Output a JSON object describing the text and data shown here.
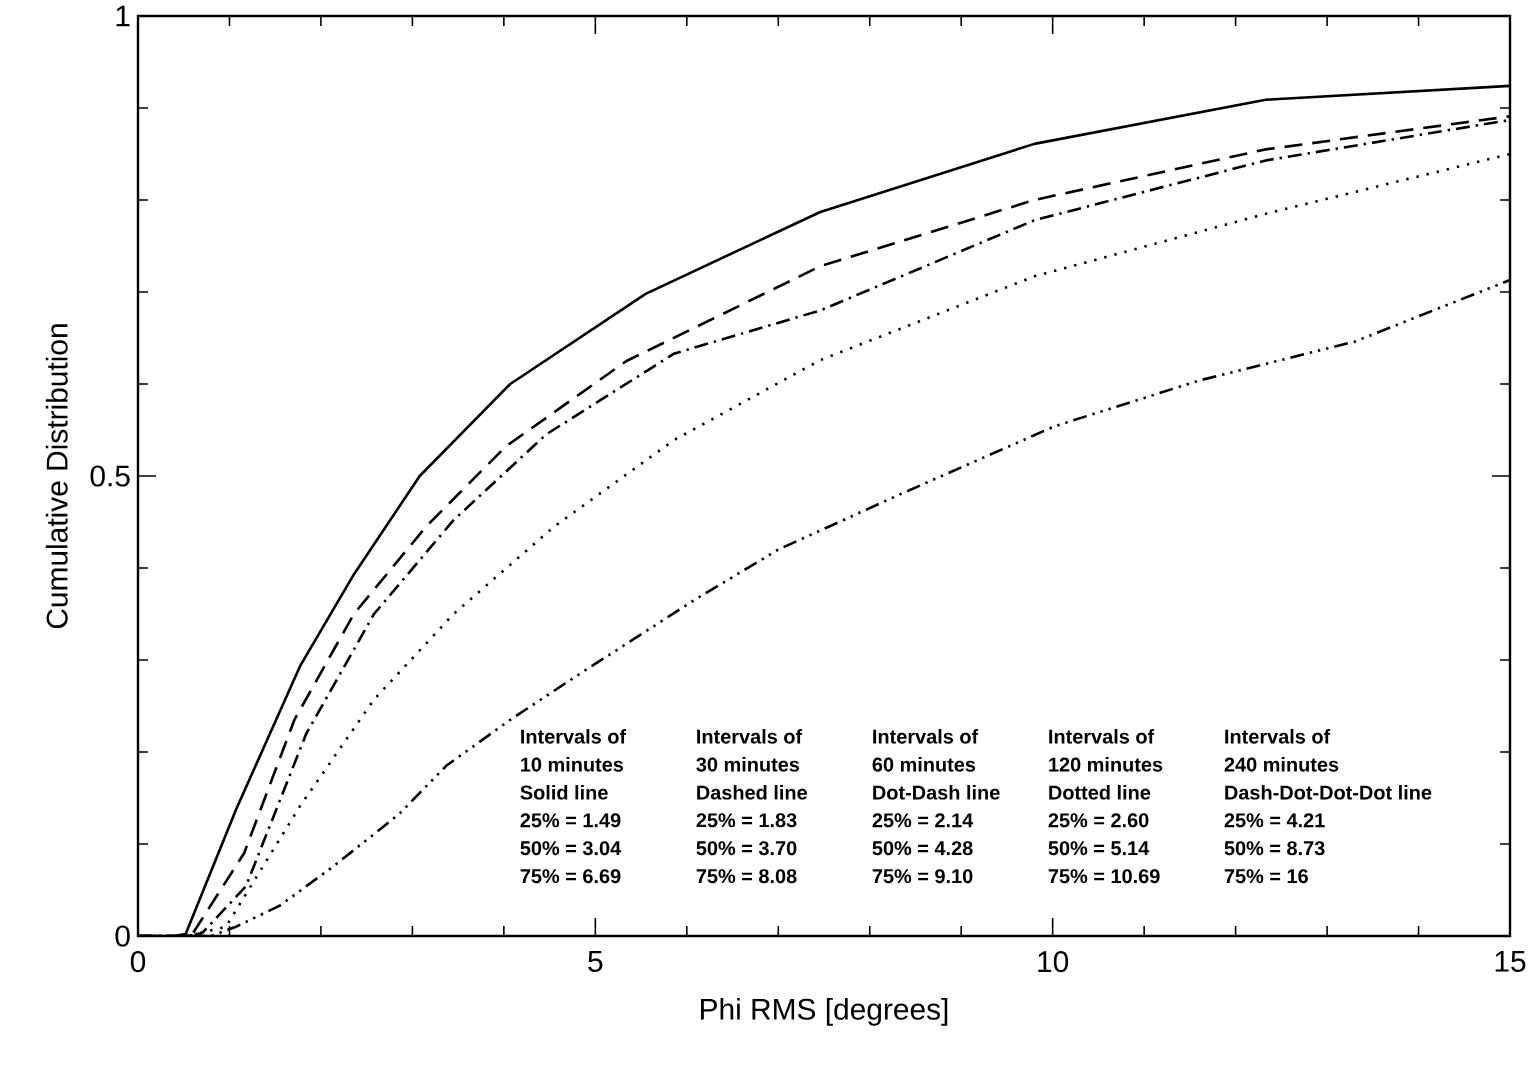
{
  "chart_data": {
    "type": "line",
    "xlabel": "Phi RMS [degrees]",
    "ylabel": "Cumulative Distribution",
    "xlim": [
      0,
      15
    ],
    "ylim": [
      0,
      1
    ],
    "xticks": [
      0,
      {
        "value": 1,
        "label": null
      },
      {
        "value": 2,
        "label": null
      },
      {
        "value": 3,
        "label": null
      },
      {
        "value": 4,
        "label": null
      },
      5,
      {
        "value": 6,
        "label": null
      },
      {
        "value": 7,
        "label": null
      },
      {
        "value": 8,
        "label": null
      },
      {
        "value": 9,
        "label": null
      },
      10,
      {
        "value": 11,
        "label": null
      },
      {
        "value": 12,
        "label": null
      },
      {
        "value": 13,
        "label": null
      },
      {
        "value": 14,
        "label": null
      },
      15
    ],
    "yticks": [
      0,
      {
        "value": 0.1,
        "label": null
      },
      {
        "value": 0.2,
        "label": null
      },
      {
        "value": 0.3,
        "label": null
      },
      {
        "value": 0.4,
        "label": null
      },
      0.5,
      {
        "value": 0.6,
        "label": null
      },
      {
        "value": 0.7,
        "label": null
      },
      {
        "value": 0.8,
        "label": null
      },
      {
        "value": 0.9,
        "label": null
      },
      1
    ],
    "grid": false,
    "marker": "none",
    "series": [
      {
        "color": "#000000",
        "line_style": "solid",
        "x": [
          0,
          0.4,
          0.52,
          1.07,
          1.77,
          2.36,
          3.08,
          4.07,
          5.55,
          7.46,
          9.8,
          12.33,
          15
        ],
        "values": [
          0,
          0,
          0.002,
          0.137,
          0.293,
          0.393,
          0.5,
          0.6,
          0.698,
          0.787,
          0.861,
          0.909,
          0.924
        ]
      },
      {
        "color": "#000000",
        "line_style": "dashed",
        "x": [
          0,
          0.45,
          0.6,
          1.16,
          1.71,
          2.36,
          3.15,
          4.02,
          5.34,
          7.46,
          9.8,
          12.33,
          15
        ],
        "values": [
          0,
          0,
          0.003,
          0.09,
          0.235,
          0.35,
          0.445,
          0.532,
          0.625,
          0.728,
          0.8,
          0.855,
          0.891
        ]
      },
      {
        "color": "#000000",
        "line_style": "dashdot",
        "x": [
          0,
          0.5,
          0.7,
          1.18,
          1.84,
          2.58,
          3.45,
          4.46,
          5.86,
          7.46,
          9.8,
          12.33,
          15
        ],
        "values": [
          0,
          0,
          0.003,
          0.054,
          0.22,
          0.35,
          0.452,
          0.545,
          0.633,
          0.68,
          0.778,
          0.843,
          0.887
        ]
      },
      {
        "color": "#000000",
        "line_style": "dotted",
        "x": [
          0,
          0.55,
          0.96,
          1.77,
          2.58,
          3.45,
          4.55,
          5.86,
          7.46,
          9.8,
          12.33,
          15
        ],
        "values": [
          0,
          0,
          0.01,
          0.141,
          0.257,
          0.35,
          0.445,
          0.539,
          0.626,
          0.717,
          0.785,
          0.85
        ]
      },
      {
        "color": "#000000",
        "line_style": "dashdotdotdot",
        "x": [
          0,
          0.8,
          1.07,
          1.55,
          2.14,
          2.86,
          3.37,
          4.07,
          4.83,
          6.08,
          7.0,
          8.33,
          10.02,
          11.61,
          13.3,
          15
        ],
        "values": [
          0,
          0,
          0.01,
          0.033,
          0.076,
          0.133,
          0.185,
          0.235,
          0.285,
          0.365,
          0.42,
          0.48,
          0.554,
          0.604,
          0.646,
          0.713
        ]
      }
    ],
    "annotations": [
      "Intervals of",
      "10 minutes",
      "Solid line",
      "25% = 1.49",
      "50% = 3.04",
      "75% = 6.69",
      "Intervals of",
      "30 minutes",
      "Dashed line",
      "25% = 1.83",
      "50% = 3.70",
      "75% = 8.08",
      "Intervals of",
      "60 minutes",
      "Dot-Dash line",
      "25% = 2.14",
      "50% = 4.28",
      "75% = 9.10",
      "Intervals of",
      "120 minutes",
      "Dotted line",
      "25% = 2.60",
      "50% = 5.14",
      "75% = 10.69",
      "Intervals of",
      "240 minutes",
      "Dash-Dot-Dot-Dot line",
      "25% = 4.21",
      "50% = 8.73",
      "75% = 16"
    ]
  }
}
